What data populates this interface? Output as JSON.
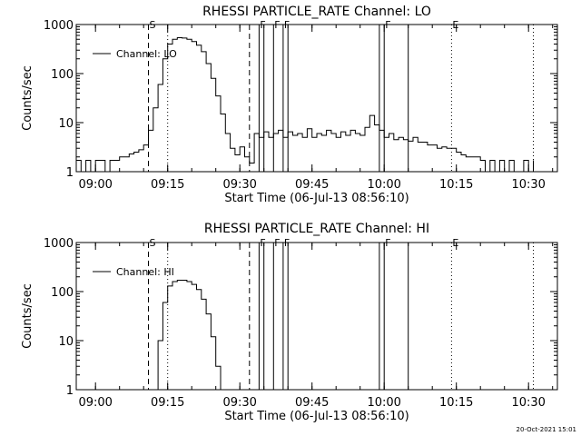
{
  "footer_date": "20-Oct-2021 15:01",
  "chart_data": [
    {
      "type": "line",
      "title": "RHESSI PARTICLE_RATE Channel: LO",
      "legend": "Channel: LO",
      "legend_position": "top-left",
      "xlabel": "Start Time (06-Jul-13 08:56:10)",
      "ylabel": "Counts/sec",
      "y_scale": "log",
      "ylim": [
        1,
        1000
      ],
      "xlim": [
        "08:56",
        "10:36"
      ],
      "x_ticks": [
        "09:00",
        "09:15",
        "09:30",
        "09:45",
        "10:00",
        "10:15",
        "10:30"
      ],
      "y_ticks": [
        "1",
        "10",
        "100",
        "1000"
      ],
      "marker_lines": [
        {
          "time": "09:11",
          "style": "dashed",
          "letter": "S"
        },
        {
          "time": "09:15",
          "style": "dotted",
          "letter": ""
        },
        {
          "time": "09:32",
          "style": "dashed",
          "letter": ""
        },
        {
          "time": "09:34",
          "style": "solid",
          "letter": "F"
        },
        {
          "time": "09:35",
          "style": "solid",
          "letter": ""
        },
        {
          "time": "09:37",
          "style": "solid",
          "letter": "F"
        },
        {
          "time": "09:39",
          "style": "solid",
          "letter": "F"
        },
        {
          "time": "09:40",
          "style": "solid",
          "letter": ""
        },
        {
          "time": "09:59",
          "style": "solid",
          "letter": ""
        },
        {
          "time": "10:00",
          "style": "solid",
          "letter": "F"
        },
        {
          "time": "10:05",
          "style": "solid",
          "letter": ""
        },
        {
          "time": "10:14",
          "style": "dotted",
          "letter": "E"
        },
        {
          "time": "10:31",
          "style": "dotted",
          "letter": ""
        }
      ],
      "series": [
        {
          "name": "Channel: LO",
          "points": [
            [
              "08:56",
              1.7
            ],
            [
              "08:57",
              1
            ],
            [
              "08:58",
              1.7
            ],
            [
              "08:59",
              1
            ],
            [
              "09:00",
              1.7
            ],
            [
              "09:01",
              1.7
            ],
            [
              "09:02",
              1
            ],
            [
              "09:03",
              1.7
            ],
            [
              "09:04",
              1.7
            ],
            [
              "09:05",
              2
            ],
            [
              "09:06",
              2
            ],
            [
              "09:07",
              2.3
            ],
            [
              "09:08",
              2.5
            ],
            [
              "09:09",
              2.8
            ],
            [
              "09:10",
              3.5
            ],
            [
              "09:11",
              7
            ],
            [
              "09:12",
              20
            ],
            [
              "09:13",
              60
            ],
            [
              "09:14",
              200
            ],
            [
              "09:15",
              400
            ],
            [
              "09:16",
              500
            ],
            [
              "09:17",
              540
            ],
            [
              "09:18",
              530
            ],
            [
              "09:19",
              500
            ],
            [
              "09:20",
              450
            ],
            [
              "09:21",
              380
            ],
            [
              "09:22",
              280
            ],
            [
              "09:23",
              160
            ],
            [
              "09:24",
              80
            ],
            [
              "09:25",
              35
            ],
            [
              "09:26",
              15
            ],
            [
              "09:27",
              6
            ],
            [
              "09:28",
              3
            ],
            [
              "09:29",
              2.2
            ],
            [
              "09:30",
              3.2
            ],
            [
              "09:31",
              2
            ],
            [
              "09:32",
              1.5
            ],
            [
              "09:33",
              6
            ],
            [
              "09:34",
              5
            ],
            [
              "09:35",
              6.5
            ],
            [
              "09:36",
              5
            ],
            [
              "09:37",
              6
            ],
            [
              "09:38",
              7
            ],
            [
              "09:39",
              5
            ],
            [
              "09:40",
              6.5
            ],
            [
              "09:41",
              5.5
            ],
            [
              "09:42",
              6
            ],
            [
              "09:43",
              5
            ],
            [
              "09:44",
              7.5
            ],
            [
              "09:45",
              5
            ],
            [
              "09:46",
              6
            ],
            [
              "09:47",
              5.5
            ],
            [
              "09:48",
              7
            ],
            [
              "09:49",
              6
            ],
            [
              "09:50",
              5
            ],
            [
              "09:51",
              6.5
            ],
            [
              "09:52",
              5.5
            ],
            [
              "09:53",
              7
            ],
            [
              "09:54",
              6
            ],
            [
              "09:55",
              5.5
            ],
            [
              "09:56",
              8
            ],
            [
              "09:57",
              14
            ],
            [
              "09:58",
              9
            ],
            [
              "09:59",
              7
            ],
            [
              "10:00",
              5
            ],
            [
              "10:01",
              6
            ],
            [
              "10:02",
              4.5
            ],
            [
              "10:03",
              5
            ],
            [
              "10:04",
              4.5
            ],
            [
              "10:05",
              4.2
            ],
            [
              "10:06",
              5
            ],
            [
              "10:07",
              4
            ],
            [
              "10:08",
              4
            ],
            [
              "10:09",
              3.5
            ],
            [
              "10:10",
              3.5
            ],
            [
              "10:11",
              3
            ],
            [
              "10:12",
              3.2
            ],
            [
              "10:13",
              3
            ],
            [
              "10:14",
              3
            ],
            [
              "10:15",
              2.5
            ],
            [
              "10:16",
              2.2
            ],
            [
              "10:17",
              2
            ],
            [
              "10:18",
              2
            ],
            [
              "10:19",
              2
            ],
            [
              "10:20",
              1.7
            ],
            [
              "10:21",
              1
            ],
            [
              "10:22",
              1.7
            ],
            [
              "10:23",
              1
            ],
            [
              "10:24",
              1.7
            ],
            [
              "10:25",
              1
            ],
            [
              "10:26",
              1.7
            ],
            [
              "10:27",
              1
            ],
            [
              "10:28",
              1
            ],
            [
              "10:29",
              1.7
            ],
            [
              "10:30",
              1
            ],
            [
              "10:31",
              1.7
            ]
          ]
        }
      ]
    },
    {
      "type": "line",
      "title": "RHESSI PARTICLE_RATE Channel: HI",
      "legend": "Channel: HI",
      "legend_position": "top-left",
      "xlabel": "Start Time (06-Jul-13 08:56:10)",
      "ylabel": "Counts/sec",
      "y_scale": "log",
      "ylim": [
        1,
        1000
      ],
      "xlim": [
        "08:56",
        "10:36"
      ],
      "x_ticks": [
        "09:00",
        "09:15",
        "09:30",
        "09:45",
        "10:00",
        "10:15",
        "10:30"
      ],
      "y_ticks": [
        "1",
        "10",
        "100",
        "1000"
      ],
      "marker_lines": [
        {
          "time": "09:11",
          "style": "dashed",
          "letter": "S"
        },
        {
          "time": "09:15",
          "style": "dotted",
          "letter": ""
        },
        {
          "time": "09:32",
          "style": "dashed",
          "letter": ""
        },
        {
          "time": "09:34",
          "style": "solid",
          "letter": "F"
        },
        {
          "time": "09:35",
          "style": "solid",
          "letter": ""
        },
        {
          "time": "09:37",
          "style": "solid",
          "letter": "F"
        },
        {
          "time": "09:39",
          "style": "solid",
          "letter": "F"
        },
        {
          "time": "09:40",
          "style": "solid",
          "letter": ""
        },
        {
          "time": "09:59",
          "style": "solid",
          "letter": ""
        },
        {
          "time": "10:00",
          "style": "solid",
          "letter": "F"
        },
        {
          "time": "10:05",
          "style": "solid",
          "letter": ""
        },
        {
          "time": "10:14",
          "style": "dotted",
          "letter": "E"
        },
        {
          "time": "10:31",
          "style": "dotted",
          "letter": ""
        }
      ],
      "series": [
        {
          "name": "Channel: HI",
          "points": [
            [
              "09:12",
              1
            ],
            [
              "09:13",
              10
            ],
            [
              "09:14",
              60
            ],
            [
              "09:15",
              130
            ],
            [
              "09:16",
              160
            ],
            [
              "09:17",
              170
            ],
            [
              "09:18",
              170
            ],
            [
              "09:19",
              160
            ],
            [
              "09:20",
              140
            ],
            [
              "09:21",
              110
            ],
            [
              "09:22",
              70
            ],
            [
              "09:23",
              35
            ],
            [
              "09:24",
              12
            ],
            [
              "09:25",
              3
            ],
            [
              "09:26",
              1
            ]
          ]
        }
      ]
    }
  ]
}
